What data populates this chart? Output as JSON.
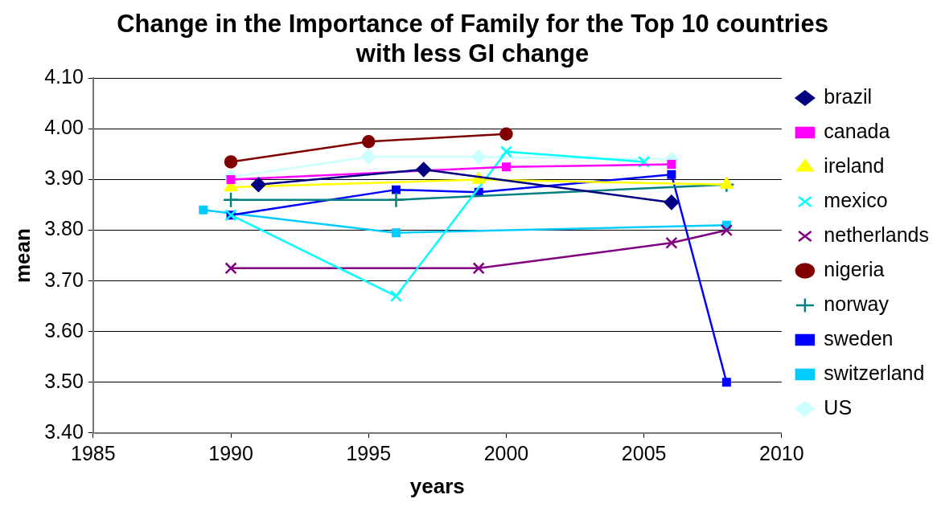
{
  "chart_data": {
    "type": "line",
    "title": "Change in the Importance of Family for the Top 10 countries with less GI change",
    "xlabel": "years",
    "ylabel": "mean",
    "xlim": [
      1985,
      2010
    ],
    "xticks": [
      1985,
      1990,
      1995,
      2000,
      2005,
      2010
    ],
    "ylim": [
      3.4,
      4.1
    ],
    "yticks": [
      {
        "value": 3.4,
        "label": "3.40"
      },
      {
        "value": 3.5,
        "label": "3.50"
      },
      {
        "value": 3.6,
        "label": "3.60"
      },
      {
        "value": 3.7,
        "label": "3.70"
      },
      {
        "value": 3.8,
        "label": "3.80"
      },
      {
        "value": 3.9,
        "label": "3.90"
      },
      {
        "value": 4.0,
        "label": "4.00"
      },
      {
        "value": 4.1,
        "label": "4.10"
      }
    ],
    "grid": "y",
    "legend": "right",
    "series": [
      {
        "name": "brazil",
        "color": "#000080",
        "marker": "diamond",
        "x": [
          1991,
          1997,
          2006
        ],
        "values": [
          3.89,
          3.92,
          3.855
        ]
      },
      {
        "name": "canada",
        "color": "#ff00ff",
        "marker": "square",
        "x": [
          1990,
          2000,
          2006
        ],
        "values": [
          3.9,
          3.925,
          3.93
        ]
      },
      {
        "name": "ireland",
        "color": "#ffff00",
        "marker": "triangle",
        "x": [
          1990,
          1999,
          2008
        ],
        "values": [
          3.885,
          3.9,
          3.89
        ]
      },
      {
        "name": "mexico",
        "color": "#00ffff",
        "marker": "cross",
        "x": [
          1990,
          1996,
          2000,
          2005
        ],
        "values": [
          3.83,
          3.67,
          3.955,
          3.935
        ]
      },
      {
        "name": "netherlands",
        "color": "#800080",
        "marker": "cross",
        "x": [
          1990,
          1999,
          2006,
          2008
        ],
        "values": [
          3.725,
          3.725,
          3.775,
          3.8
        ]
      },
      {
        "name": "nigeria",
        "color": "#800000",
        "marker": "circle",
        "x": [
          1990,
          1995,
          2000
        ],
        "values": [
          3.935,
          3.975,
          3.99
        ]
      },
      {
        "name": "norway",
        "color": "#008080",
        "marker": "plus",
        "x": [
          1990,
          1996,
          2008
        ],
        "values": [
          3.86,
          3.86,
          3.89
        ]
      },
      {
        "name": "sweden",
        "color": "#0000ff",
        "marker": "square",
        "x": [
          1990,
          1996,
          1999,
          2006,
          2008
        ],
        "values": [
          3.83,
          3.88,
          3.875,
          3.91,
          3.5
        ]
      },
      {
        "name": "switzerland",
        "color": "#00ccff",
        "marker": "square",
        "x": [
          1989,
          1996,
          2008
        ],
        "values": [
          3.84,
          3.795,
          3.81
        ]
      },
      {
        "name": "US",
        "color": "#ccffff",
        "marker": "diamond",
        "x": [
          1990,
          1995,
          1999,
          2006
        ],
        "values": [
          3.905,
          3.945,
          3.945,
          3.94
        ]
      }
    ]
  }
}
